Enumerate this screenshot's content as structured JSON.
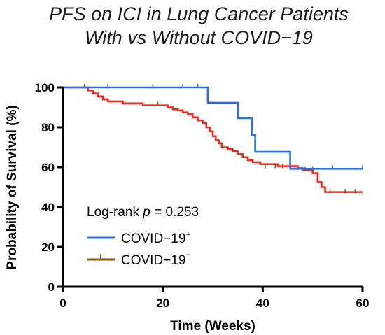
{
  "chart_data": {
    "type": "line",
    "subtype": "kaplan-meier",
    "title": [
      "PFS on ICI in Lung Cancer Patients",
      "With vs Without COVID−19"
    ],
    "xlabel": "Time (Weeks)",
    "ylabel": "Probability of Survival (%)",
    "xlim": [
      0,
      60
    ],
    "ylim": [
      0,
      100
    ],
    "xticks": [
      0,
      20,
      40,
      60
    ],
    "yticks": [
      0,
      20,
      40,
      60,
      80,
      100
    ],
    "annotation": {
      "text": "Log-rank ",
      "p_symbol": "p",
      "value": " = 0.253"
    },
    "legend_position": "bottom-left",
    "series": [
      {
        "name_base": "COVID−19",
        "name_sup": "+",
        "color": "#2a6fdb",
        "steps": [
          [
            0,
            100
          ],
          [
            29,
            92.3
          ],
          [
            35,
            84.6
          ],
          [
            37.8,
            76.2
          ],
          [
            38.5,
            67.7
          ],
          [
            45.5,
            59.2
          ],
          [
            60,
            59.2
          ]
        ],
        "censored": [
          [
            9,
            100
          ],
          [
            18,
            100
          ],
          [
            24,
            100
          ],
          [
            27,
            100
          ],
          [
            54,
            59.2
          ],
          [
            60,
            59.2
          ]
        ]
      },
      {
        "name_base": "COVID−19",
        "name_sup": "⁻",
        "color": "#ee2a1f",
        "legend_color": "#8b5a14",
        "steps": [
          [
            0,
            100
          ],
          [
            5,
            98.5
          ],
          [
            6,
            97
          ],
          [
            7,
            95.5
          ],
          [
            8,
            94
          ],
          [
            9,
            93
          ],
          [
            12,
            92
          ],
          [
            16,
            91
          ],
          [
            21,
            90
          ],
          [
            22,
            89
          ],
          [
            23,
            88.5
          ],
          [
            24,
            87.5
          ],
          [
            25,
            86.5
          ],
          [
            26,
            85
          ],
          [
            27,
            83.5
          ],
          [
            28,
            82
          ],
          [
            28.7,
            80
          ],
          [
            29.4,
            78
          ],
          [
            30,
            75.5
          ],
          [
            30.6,
            73.5
          ],
          [
            31.2,
            72
          ],
          [
            31.8,
            70
          ],
          [
            33,
            69
          ],
          [
            34,
            68
          ],
          [
            35,
            66.5
          ],
          [
            36,
            65
          ],
          [
            37,
            63.5
          ],
          [
            38,
            62.5
          ],
          [
            39.5,
            61.5
          ],
          [
            43,
            60.5
          ],
          [
            47,
            59.5
          ],
          [
            48,
            58.5
          ],
          [
            50,
            57
          ],
          [
            51,
            52.5
          ],
          [
            51.8,
            50
          ],
          [
            52.5,
            47.5
          ],
          [
            60,
            47.5
          ]
        ],
        "censored": [
          [
            4.3,
            100
          ],
          [
            19,
            91
          ],
          [
            40.5,
            59.8
          ],
          [
            42.5,
            59.8
          ],
          [
            44,
            59.8
          ],
          [
            48.5,
            58.3
          ],
          [
            50,
            58.3
          ],
          [
            53.5,
            47.2
          ],
          [
            56.5,
            47.2
          ],
          [
            58.5,
            47.2
          ]
        ],
        "censor_color": "#8b5a14"
      }
    ]
  }
}
